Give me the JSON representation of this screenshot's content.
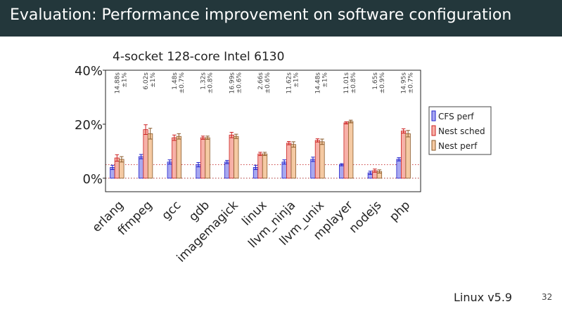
{
  "slide": {
    "title": "Evaluation: Performance improvement on software configuration",
    "footer": "Linux v5.9",
    "page_number": "32"
  },
  "colors": {
    "title_bar": "#23373b",
    "cfs_fill": "#a8a8f0",
    "cfs_stroke": "#2222cc",
    "nest_sched_fill": "#f7b1a8",
    "nest_sched_stroke": "#cc2222",
    "nest_perf_fill": "#f5caa3",
    "nest_perf_stroke": "#8a5a2a"
  },
  "chart_data": {
    "type": "bar",
    "title": "4-socket 128-core Intel 6130",
    "xlabel": "",
    "ylabel": "",
    "ylim": [
      -5,
      40
    ],
    "yticks": [
      "0%",
      "20%",
      "40%"
    ],
    "ytick_values": [
      0,
      20,
      40
    ],
    "grid": false,
    "reference_lines": [
      5,
      0,
      -5
    ],
    "legend_position": "right",
    "categories": [
      "erlang",
      "ffmpeg",
      "gcc",
      "gdb",
      "imagemagick",
      "linux",
      "llvm_ninja",
      "llvm_unix",
      "mplayer",
      "nodejs",
      "php"
    ],
    "top_annotations": [
      [
        "14.88s",
        "±1%"
      ],
      [
        "6.02s",
        "±1%"
      ],
      [
        "1.48s",
        "±0.7%"
      ],
      [
        "1.32s",
        "±0.8%"
      ],
      [
        "16.99s",
        "±0.6%"
      ],
      [
        "2.66s",
        "±0.6%"
      ],
      [
        "11.62s",
        "±1%"
      ],
      [
        "14.48s",
        "±1%"
      ],
      [
        "11.01s",
        "±0.8%"
      ],
      [
        "1.65s",
        "±0.9%"
      ],
      [
        "14.95s",
        "±0.7%"
      ]
    ],
    "series": [
      {
        "name": "CFS perf",
        "values": [
          4,
          8,
          6,
          5,
          6,
          4,
          6,
          7,
          5,
          2,
          7
        ],
        "errors": [
          0.8,
          0.8,
          0.8,
          0.8,
          0.6,
          0.8,
          0.8,
          0.8,
          0.4,
          0.6,
          0.6
        ]
      },
      {
        "name": "Nest sched",
        "values": [
          7.5,
          18,
          15,
          15,
          16,
          9,
          13,
          14,
          20.5,
          2.8,
          17.5
        ],
        "errors": [
          1.2,
          1.8,
          1,
          0.6,
          1,
          0.6,
          0.6,
          0.6,
          0.4,
          0.6,
          0.8
        ]
      },
      {
        "name": "Nest perf",
        "values": [
          7,
          16.5,
          15.5,
          15,
          15.5,
          9,
          12.5,
          13.5,
          21,
          2.5,
          16.5
        ],
        "errors": [
          1,
          2,
          1,
          0.6,
          0.8,
          0.6,
          1,
          1,
          0.5,
          0.6,
          1.2
        ]
      }
    ]
  }
}
